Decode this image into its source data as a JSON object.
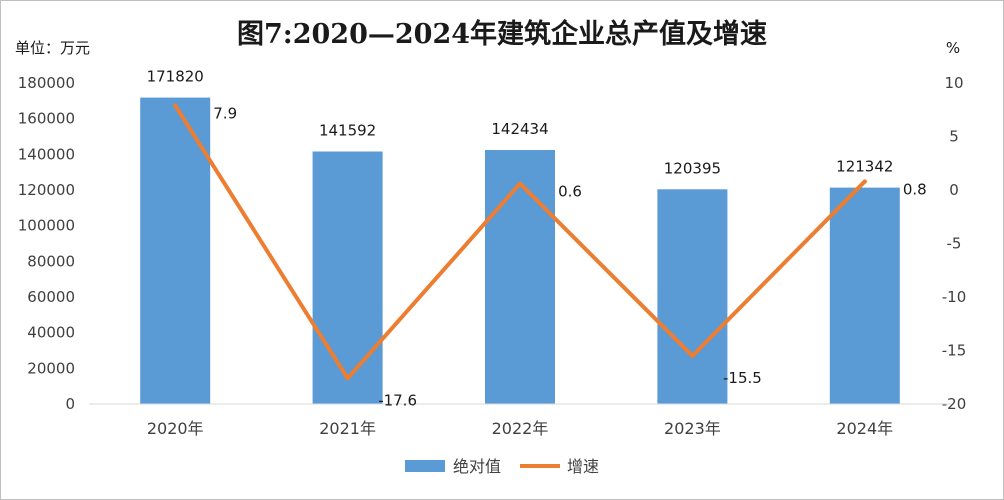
{
  "chart_data": {
    "type": "bar",
    "title": "图7:2020—2024年建筑企业总产值及增速",
    "y_left_unit": "单位：万元",
    "y_right_unit": "%",
    "categories": [
      "2020年",
      "2021年",
      "2022年",
      "2023年",
      "2024年"
    ],
    "series": [
      {
        "name": "绝对值",
        "type": "bar",
        "axis": "left",
        "color": "#5b9bd5",
        "values": [
          171820,
          141592,
          142434,
          120395,
          121342
        ]
      },
      {
        "name": "增速",
        "type": "line",
        "axis": "right",
        "color": "#ed7d31",
        "values": [
          7.9,
          -17.6,
          0.6,
          -15.5,
          0.8
        ]
      }
    ],
    "y_left": {
      "ylim": [
        0,
        180000
      ],
      "ticks": [
        0,
        20000,
        40000,
        60000,
        80000,
        100000,
        120000,
        140000,
        160000,
        180000
      ]
    },
    "y_right": {
      "ylim": [
        -20,
        10
      ],
      "ticks": [
        10,
        5,
        0,
        -5,
        -10,
        -15,
        -20
      ]
    },
    "grid": false,
    "legend_position": "bottom"
  }
}
